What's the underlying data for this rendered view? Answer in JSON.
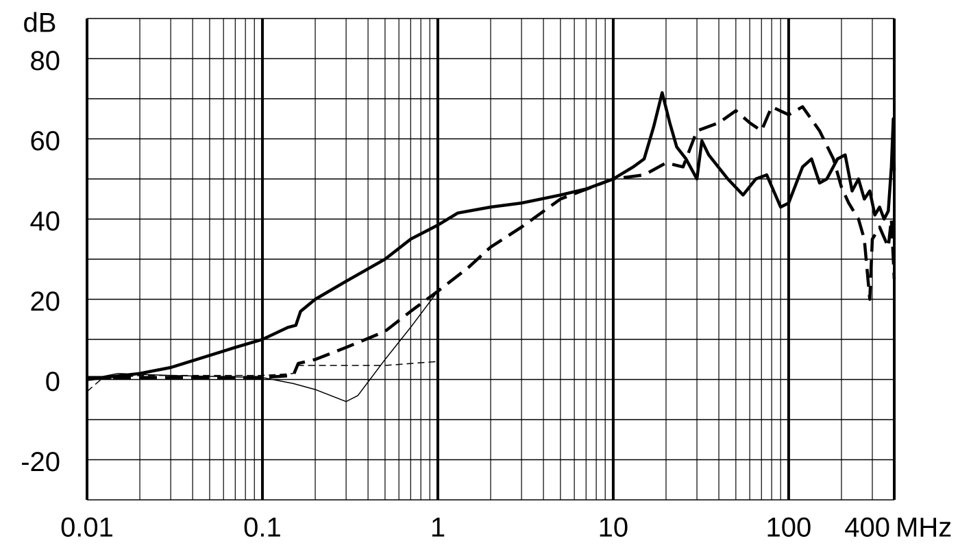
{
  "chart_data": {
    "type": "line",
    "x_label": "MHz",
    "y_label": "dB",
    "log_x": true,
    "xlim": [
      0.01,
      400
    ],
    "xticks": [
      0.01,
      0.1,
      1,
      10,
      100,
      400
    ],
    "x_minor_grid": true,
    "ylim": [
      -30,
      90
    ],
    "yticks": [
      -20,
      0,
      20,
      40,
      60,
      80
    ],
    "ygrid": [
      -30,
      -20,
      -10,
      0,
      10,
      20,
      30,
      40,
      50,
      60,
      70,
      80,
      90
    ],
    "grid": true,
    "series": [
      {
        "color": "#000000",
        "width": 4.5,
        "dash": "none",
        "x": [
          0.01,
          0.02,
          0.03,
          0.05,
          0.07,
          0.1,
          0.14,
          0.155,
          0.165,
          0.2,
          0.3,
          0.5,
          0.7,
          1,
          1.3,
          2,
          3,
          5,
          7,
          10,
          13,
          15,
          17,
          19,
          21,
          23,
          26,
          30,
          32,
          35,
          45,
          55,
          65,
          75,
          90,
          100,
          120,
          135,
          150,
          165,
          190,
          210,
          230,
          250,
          270,
          290,
          310,
          330,
          350,
          370,
          385,
          395,
          400
        ],
        "values": [
          0,
          1.5,
          3,
          6,
          8,
          10,
          13,
          13.5,
          17,
          20,
          24.5,
          30,
          35,
          38.5,
          41.5,
          43,
          44,
          46,
          47.5,
          50,
          53,
          55,
          63,
          71.5,
          64,
          58,
          55,
          50,
          59.5,
          56,
          50,
          46,
          50,
          51,
          43,
          44,
          53,
          55,
          49,
          50,
          55,
          56,
          47,
          50,
          45,
          47,
          41,
          43,
          40,
          42,
          53,
          65,
          52
        ]
      },
      {
        "color": "#000000",
        "width": 4.5,
        "dash": "26 12",
        "x": [
          0.01,
          0.05,
          0.1,
          0.15,
          0.16,
          0.2,
          0.3,
          0.5,
          0.7,
          1,
          1.5,
          2,
          3,
          5,
          10,
          15,
          20,
          25,
          30,
          40,
          50,
          60,
          70,
          80,
          100,
          120,
          150,
          180,
          200,
          220,
          250,
          270,
          290,
          300,
          330,
          370,
          385,
          400
        ],
        "values": [
          0.5,
          0.5,
          0.5,
          1,
          4,
          5,
          8,
          12,
          17,
          22,
          28,
          33,
          38,
          45,
          50,
          51,
          54,
          53,
          62,
          64,
          67,
          64,
          62,
          68,
          66,
          68,
          62,
          55,
          48,
          44,
          40,
          35,
          20,
          35,
          38,
          33,
          40,
          25
        ]
      },
      {
        "color": "#000000",
        "width": 1.5,
        "dash": "none",
        "x": [
          0.01,
          0.015,
          0.03,
          0.1,
          0.15,
          0.2,
          0.3,
          0.35,
          0.5,
          0.7,
          1
        ],
        "values": [
          0,
          1.5,
          1,
          0.5,
          -1,
          -2.5,
          -5.5,
          -4,
          5,
          13,
          22
        ]
      },
      {
        "color": "#000000",
        "width": 1.5,
        "dash": "10 6",
        "x": [
          0.01,
          0.012,
          0.02,
          0.1,
          0.15,
          0.16,
          0.5,
          1
        ],
        "values": [
          -3,
          0,
          1,
          1,
          1.5,
          3.5,
          3.5,
          4.5
        ]
      }
    ]
  }
}
